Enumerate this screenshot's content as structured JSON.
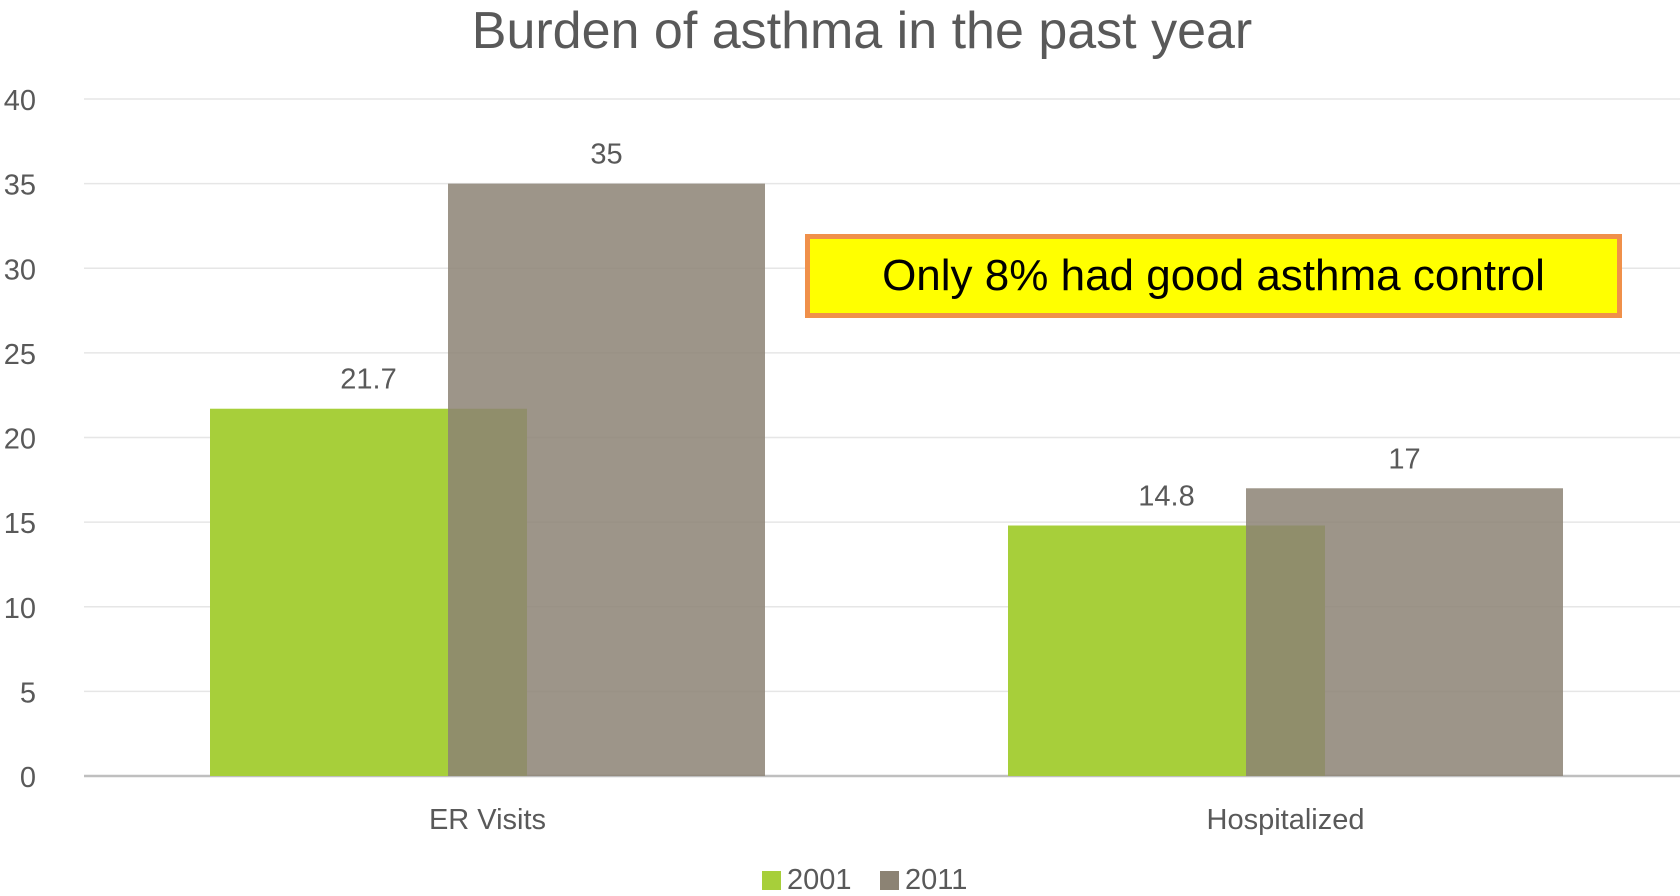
{
  "chart_data": {
    "type": "bar",
    "title": "Burden of asthma in the past year",
    "xlabel": "",
    "ylabel": "",
    "categories": [
      "ER Visits",
      "Hospitalized"
    ],
    "series": [
      {
        "name": "2001",
        "values": [
          21.7,
          14.8
        ],
        "color": "#a7cf3a"
      },
      {
        "name": "2011",
        "values": [
          35,
          17
        ],
        "color": "#8c8374"
      }
    ],
    "ylim": [
      0,
      40
    ],
    "yticks": [
      "0",
      "5",
      "10",
      "15",
      "20",
      "25",
      "30",
      "35",
      "40"
    ],
    "data_labels": [
      [
        "21.7",
        "14.8"
      ],
      [
        "35",
        "17"
      ]
    ],
    "grid": true,
    "legend": "bottom",
    "overlap": true,
    "annotation": "Only 8% had good asthma control"
  },
  "colors": {
    "annotation_fill": "#ffff00",
    "annotation_border": "#f0904a",
    "gridline": "#e6e6e6",
    "axis_line": "#bfbfbf",
    "text": "#595959"
  }
}
